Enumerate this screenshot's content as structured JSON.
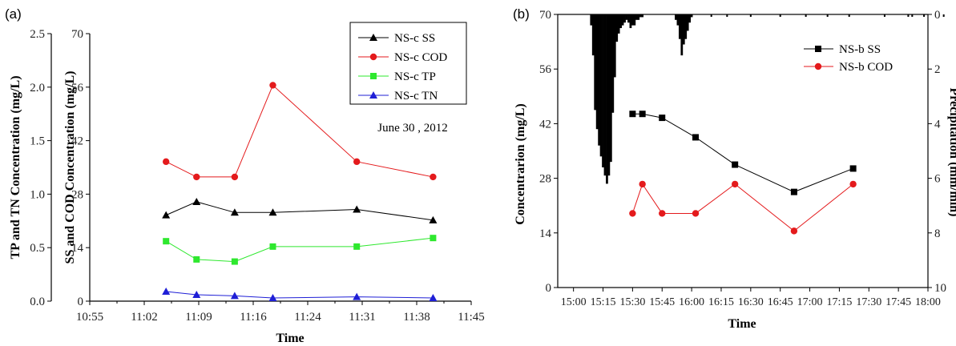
{
  "chart_data": [
    {
      "panel_label": "(a)",
      "type": "line",
      "xlabel": "Time",
      "ylabel_left": "TP and TN Concentration (mg/L)",
      "ylabel_right_inner": "SS and COD Concentration (mg/L)",
      "annotation": "June 30 , 2012",
      "x_ticks": [
        "10:55",
        "11:02",
        "11:09",
        "11:16",
        "11:24",
        "11:31",
        "11:38",
        "11:45"
      ],
      "xlim": [
        "10:55",
        "11:45"
      ],
      "y_left_ticks": [
        "0.0",
        "0.5",
        "1.0",
        "1.5",
        "2.0",
        "2.5"
      ],
      "y_left_lim": [
        0,
        2.5
      ],
      "y_inner_ticks": [
        "0",
        "14",
        "28",
        "42",
        "56",
        "70"
      ],
      "y_inner_lim": [
        0,
        70
      ],
      "x": [
        "11:05",
        "11:09",
        "11:14",
        "11:19",
        "11:30",
        "11:40"
      ],
      "series": [
        {
          "name": "NS-c SS",
          "axis": "inner",
          "color": "#000000",
          "marker": "triangle",
          "values": [
            22.5,
            26.0,
            23.2,
            23.2,
            24.0,
            21.2
          ]
        },
        {
          "name": "NS-c COD",
          "axis": "inner",
          "color": "#e41a1c",
          "marker": "circle",
          "values": [
            36.5,
            32.5,
            32.5,
            56.5,
            36.5,
            32.5
          ]
        },
        {
          "name": "NS-c TP",
          "axis": "left",
          "color": "#2ee82e",
          "marker": "square",
          "values": [
            0.56,
            0.39,
            0.37,
            0.51,
            0.51,
            0.59
          ]
        },
        {
          "name": "NS-c TN",
          "axis": "left",
          "color": "#1f1fd6",
          "marker": "triangle",
          "values": [
            0.09,
            0.06,
            0.05,
            0.03,
            0.04,
            0.03
          ]
        }
      ],
      "legend_position": "top-right"
    },
    {
      "panel_label": "(b)",
      "type": "line",
      "xlabel": "Time",
      "ylabel_left": "Concentrarion (mg/L)",
      "ylabel_right": "Precipitation (mm/min)",
      "x_ticks": [
        "15:00",
        "15:15",
        "15:30",
        "15:45",
        "16:00",
        "16:15",
        "16:30",
        "16:45",
        "17:00",
        "17:15",
        "17:30",
        "17:45",
        "18:00"
      ],
      "xlim": [
        "14:52",
        "18:00"
      ],
      "y_left_ticks": [
        "0",
        "14",
        "28",
        "42",
        "56",
        "70"
      ],
      "y_left_lim": [
        0,
        70
      ],
      "y_right_ticks": [
        "0",
        "2",
        "4",
        "6",
        "8",
        "10"
      ],
      "y_right_lim": [
        0,
        10
      ],
      "y_right_inverted": true,
      "series": [
        {
          "name": "NS-b SS",
          "axis": "left",
          "color": "#000000",
          "marker": "square",
          "x": [
            "15:30",
            "15:35",
            "15:45",
            "16:02",
            "16:22",
            "16:52",
            "17:22"
          ],
          "values": [
            44.5,
            44.5,
            43.5,
            38.5,
            31.5,
            24.5,
            30.5
          ]
        },
        {
          "name": "NS-b COD",
          "axis": "left",
          "color": "#e41a1c",
          "marker": "circle",
          "x": [
            "15:30",
            "15:35",
            "15:45",
            "16:02",
            "16:22",
            "16:52",
            "17:22"
          ],
          "values": [
            19.0,
            26.5,
            19.0,
            19.0,
            26.5,
            14.5,
            26.5
          ]
        }
      ],
      "precipitation": {
        "type": "bar",
        "axis": "right",
        "color": "#000000",
        "minutes_after_1500": [
          9,
          10,
          11,
          12,
          13,
          14,
          15,
          16,
          17,
          18,
          19,
          20,
          21,
          22,
          23,
          24,
          25,
          26,
          27,
          28,
          29,
          30,
          31,
          32,
          33,
          34,
          35,
          52,
          53,
          54,
          55,
          56,
          57,
          58,
          59,
          60
        ],
        "values": [
          0.4,
          1.5,
          3.5,
          4.2,
          4.8,
          5.2,
          5.6,
          5.9,
          6.2,
          5.9,
          5.4,
          3.6,
          2.3,
          1.0,
          0.7,
          0.5,
          0.4,
          0.3,
          0.2,
          0.3,
          0.5,
          0.4,
          0.4,
          0.2,
          0.2,
          0.1,
          0.1,
          0.2,
          0.4,
          0.9,
          1.5,
          1.1,
          0.9,
          0.6,
          0.3,
          0.1
        ],
        "minor_drizzle": true
      },
      "legend_position": "top-right"
    }
  ]
}
